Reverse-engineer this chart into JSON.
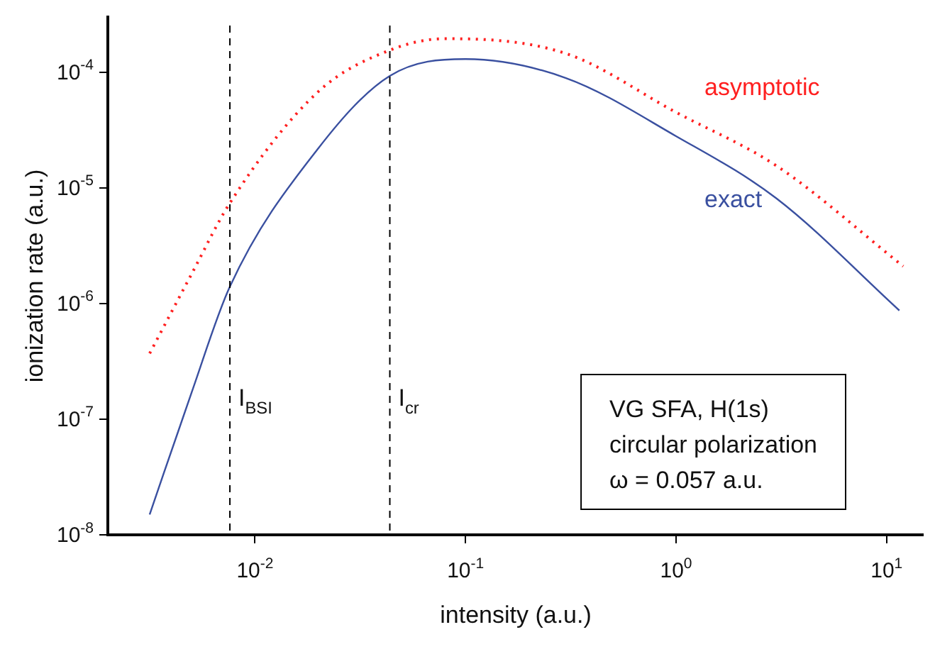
{
  "chart_data": {
    "type": "line",
    "xlabel": "intensity (a.u.)",
    "ylabel": "ionization rate (a.u.)",
    "log": "xy",
    "grid": false,
    "legend": false,
    "marker": "none",
    "xlim": [
      0.002,
      15
    ],
    "ylim": [
      1e-08,
      0.0003
    ],
    "xticks": [
      {
        "value": 0.01,
        "label": "10$^{-2}$"
      },
      {
        "value": 0.1,
        "label": "10$^{-1}$"
      },
      {
        "value": 1,
        "label": "10$^{0}$"
      },
      {
        "value": 10,
        "label": "10$^{1}$"
      }
    ],
    "yticks": [
      {
        "value": 1e-08,
        "label": "10$^{-8}$"
      },
      {
        "value": 1e-07,
        "label": "10$^{-7}$"
      },
      {
        "value": 1e-06,
        "label": "10$^{-6}$"
      },
      {
        "value": 1e-05,
        "label": "10$^{-5}$"
      },
      {
        "value": 0.0001,
        "label": "10$^{-4}$"
      }
    ],
    "series": [
      {
        "name": "asymptotic",
        "color": "#ff2020",
        "line_style": "dotted",
        "x": [
          0.00316,
          0.005,
          0.0076,
          0.02,
          0.0437,
          0.08,
          0.3,
          1,
          3,
          12
        ],
        "values": [
          3.7e-07,
          1.8e-06,
          7.4e-06,
          6.8e-05,
          0.000155,
          0.000195,
          0.000145,
          4.5e-05,
          1.55e-05,
          2.1e-06
        ]
      },
      {
        "name": "exact",
        "color": "#3a50a0",
        "line_style": "solid",
        "x": [
          0.00316,
          0.005,
          0.0076,
          0.02,
          0.0437,
          0.1,
          0.3,
          1,
          3,
          11.5
        ],
        "values": [
          1.5e-08,
          1.7e-07,
          1.4e-06,
          2.2e-05,
          9.3e-05,
          0.00013,
          8.9e-05,
          2.8e-05,
          8.1e-06,
          8.7e-07
        ]
      }
    ],
    "ref_lines": [
      {
        "axis": "x",
        "value": 0.0076,
        "label": "I$_{BSI}$",
        "line_style": "dashed"
      },
      {
        "axis": "x",
        "value": 0.0437,
        "label": "I$_{cr}$",
        "line_style": "dashed"
      }
    ],
    "annotations": [
      "VG SFA, H(1s)",
      "circular polarization",
      "ω = 0.057 a.u."
    ]
  }
}
